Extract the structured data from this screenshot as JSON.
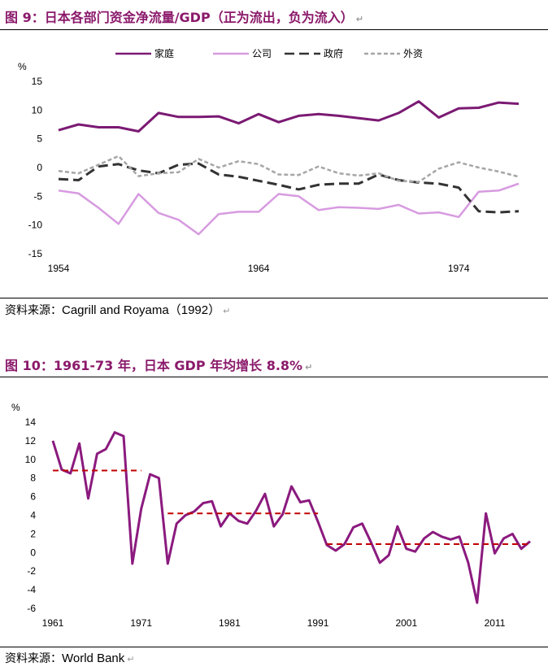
{
  "chart1": {
    "title": "图 9：日本各部门资金净流量/GDP（正为流出，负为流入）",
    "source_label": "资料来源：",
    "source_name": "Cagrill and Royama（1992）",
    "return_mark": "↵",
    "chart_data": {
      "type": "line",
      "ylabel": "%",
      "ylim": [
        -15,
        15
      ],
      "yticks": [
        15,
        10,
        5,
        0,
        -5,
        -10,
        -15
      ],
      "xlim": [
        1954,
        1977
      ],
      "xticks": [
        1954,
        1964,
        1974
      ],
      "legend_position": "top",
      "series": [
        {
          "name": "家庭",
          "color": "#7b1a73",
          "dash": "solid",
          "x": [
            1954,
            1955,
            1956,
            1957,
            1958,
            1959,
            1960,
            1961,
            1962,
            1963,
            1964,
            1965,
            1966,
            1967,
            1968,
            1969,
            1970,
            1971,
            1972,
            1973,
            1974,
            1975,
            1976,
            1977
          ],
          "values": [
            6.5,
            7.5,
            7.0,
            7.0,
            6.3,
            9.5,
            8.8,
            8.8,
            8.9,
            7.7,
            9.3,
            7.9,
            9.0,
            9.3,
            9.0,
            8.6,
            8.2,
            9.5,
            11.5,
            8.7,
            10.3,
            10.4,
            11.3,
            11.1
          ]
        },
        {
          "name": "公司",
          "color": "#d79be0",
          "dash": "solid",
          "x": [
            1954,
            1955,
            1956,
            1957,
            1958,
            1959,
            1960,
            1961,
            1962,
            1963,
            1964,
            1965,
            1966,
            1967,
            1968,
            1969,
            1970,
            1971,
            1972,
            1973,
            1974,
            1975,
            1976,
            1977
          ],
          "values": [
            -4.0,
            -4.5,
            -7.0,
            -9.8,
            -4.6,
            -7.9,
            -9.1,
            -11.6,
            -8.1,
            -7.7,
            -7.7,
            -4.6,
            -5.0,
            -7.4,
            -6.9,
            -7.0,
            -7.2,
            -6.5,
            -8.0,
            -7.8,
            -8.6,
            -4.2,
            -4.0,
            -2.8
          ]
        },
        {
          "name": "政府",
          "color": "#333333",
          "dash": "longdash",
          "x": [
            1954,
            1955,
            1956,
            1957,
            1958,
            1959,
            1960,
            1961,
            1962,
            1963,
            1964,
            1965,
            1966,
            1967,
            1968,
            1969,
            1970,
            1971,
            1972,
            1973,
            1974,
            1975,
            1976,
            1977
          ],
          "values": [
            -2.0,
            -2.2,
            0.2,
            0.6,
            -0.5,
            -1.0,
            0.5,
            0.7,
            -1.2,
            -1.6,
            -2.3,
            -3.0,
            -3.8,
            -3.0,
            -2.8,
            -2.8,
            -1.2,
            -2.2,
            -2.6,
            -2.8,
            -3.5,
            -7.6,
            -7.8,
            -7.6
          ]
        },
        {
          "name": "外资",
          "color": "#a6a6a6",
          "dash": "shortdash",
          "x": [
            1954,
            1955,
            1956,
            1957,
            1958,
            1959,
            1960,
            1961,
            1962,
            1963,
            1964,
            1965,
            1966,
            1967,
            1968,
            1969,
            1970,
            1971,
            1972,
            1973,
            1974,
            1975,
            1976,
            1977
          ],
          "values": [
            -0.6,
            -1.0,
            0.5,
            2.0,
            -1.5,
            -1.0,
            -0.8,
            1.5,
            0.0,
            1.1,
            0.6,
            -1.2,
            -1.3,
            0.2,
            -1.0,
            -1.4,
            -1.0,
            -2.3,
            -2.5,
            -0.2,
            0.9,
            0.0,
            -0.7,
            -1.6
          ]
        }
      ]
    }
  },
  "chart2": {
    "title": "图 10：1961-73 年，日本 GDP 年均增长 8.8%",
    "source_label": "资料来源：",
    "source_name": "World Bank",
    "return_mark": "↵",
    "chart_data": {
      "type": "line",
      "ylabel": "%",
      "ylim": [
        -6,
        14
      ],
      "yticks": [
        14,
        12,
        10,
        8,
        6,
        4,
        2,
        0,
        -2,
        -4,
        -6
      ],
      "xlim": [
        1961,
        2015
      ],
      "xticks": [
        1961,
        1971,
        1981,
        1991,
        2001,
        2011
      ],
      "series": [
        {
          "name": "",
          "color": "#8b1a7e",
          "dash": "solid",
          "x": [
            1961,
            1962,
            1963,
            1964,
            1965,
            1966,
            1967,
            1968,
            1969,
            1970,
            1971,
            1972,
            1973,
            1974,
            1975,
            1976,
            1977,
            1978,
            1979,
            1980,
            1981,
            1982,
            1983,
            1984,
            1985,
            1986,
            1987,
            1988,
            1989,
            1990,
            1991,
            1992,
            1993,
            1994,
            1995,
            1996,
            1997,
            1998,
            1999,
            2000,
            2001,
            2002,
            2003,
            2004,
            2005,
            2006,
            2007,
            2008,
            2009,
            2010,
            2011,
            2012,
            2013,
            2014,
            2015
          ],
          "values": [
            12.0,
            8.9,
            8.5,
            11.7,
            5.8,
            10.6,
            11.1,
            12.9,
            12.5,
            -1.2,
            4.7,
            8.4,
            8.0,
            -1.2,
            3.1,
            4.0,
            4.4,
            5.3,
            5.5,
            2.8,
            4.2,
            3.4,
            3.1,
            4.5,
            6.3,
            2.8,
            4.1,
            7.1,
            5.4,
            5.6,
            3.3,
            0.8,
            0.2,
            0.9,
            2.7,
            3.1,
            1.1,
            -1.1,
            -0.3,
            2.8,
            0.4,
            0.1,
            1.5,
            2.2,
            1.7,
            1.4,
            1.7,
            -1.1,
            -5.4,
            4.2,
            -0.1,
            1.5,
            2.0,
            0.4,
            1.2
          ]
        },
        {
          "name": "",
          "color": "#c00000",
          "dash": "dash",
          "x": [
            1961,
            1971
          ],
          "values": [
            8.8,
            8.8
          ]
        },
        {
          "name": "",
          "color": "#c00000",
          "dash": "dash",
          "x": [
            1974,
            1991
          ],
          "values": [
            4.2,
            4.2
          ]
        },
        {
          "name": "",
          "color": "#c00000",
          "dash": "dash",
          "x": [
            1992,
            2015
          ],
          "values": [
            0.9,
            0.9
          ]
        }
      ]
    }
  }
}
